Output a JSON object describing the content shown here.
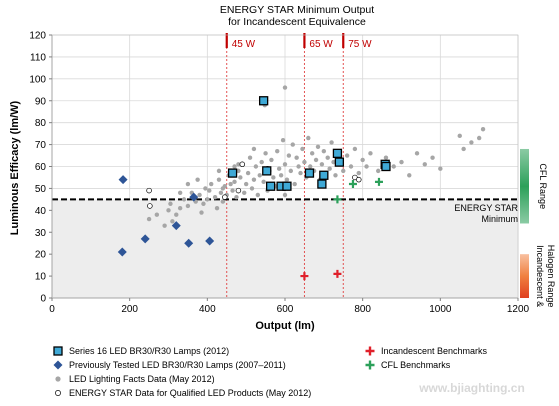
{
  "chart_data": {
    "type": "scatter",
    "title_lines": [
      "ENERGY STAR Minimum Output",
      "for Incandescent Equivalence"
    ],
    "xlabel": "Output (lm)",
    "ylabel": "Luminous Efficacy (lm/W)",
    "xlim": [
      0,
      1200
    ],
    "ylim": [
      0,
      120
    ],
    "x_ticks": [
      "0",
      "200",
      "400",
      "600",
      "800",
      "1000",
      "1200"
    ],
    "y_ticks": [
      "0",
      "10",
      "20",
      "30",
      "40",
      "50",
      "60",
      "70",
      "80",
      "90",
      "100",
      "110",
      "120"
    ],
    "grid": true,
    "energy_star_minimum": {
      "value": 45,
      "label_lines": [
        "ENERGY STAR",
        "Minimum"
      ]
    },
    "equivalence_lines": [
      {
        "label": "45 W",
        "x": 450
      },
      {
        "label": "65 W",
        "x": 650
      },
      {
        "label": "75 W",
        "x": 750
      }
    ],
    "right_bands": [
      {
        "label": "CFL Range",
        "from": 34,
        "to": 68,
        "color": "#2ca05a"
      },
      {
        "label_lines": [
          "Incandescent &",
          "Halogen Range"
        ],
        "from": 0,
        "to": 20,
        "color": "#f08040"
      }
    ],
    "series": [
      {
        "name": "Series 16 LED BR30/R30 Lamps (2012)",
        "marker": "square",
        "color": "#3fa9d6",
        "points": [
          [
            465,
            57
          ],
          [
            545,
            90
          ],
          [
            553,
            58
          ],
          [
            563,
            51
          ],
          [
            590,
            51
          ],
          [
            605,
            51
          ],
          [
            663,
            57
          ],
          [
            695,
            52
          ],
          [
            700,
            56
          ],
          [
            735,
            66
          ],
          [
            740,
            62
          ],
          [
            858,
            61
          ],
          [
            860,
            60
          ]
        ]
      },
      {
        "name": "Previously Tested  LED BR30/R30 Lamps (2007–2011)",
        "marker": "diamond",
        "color": "#2e5597",
        "points": [
          [
            183,
            54
          ],
          [
            181,
            21
          ],
          [
            240,
            27
          ],
          [
            320,
            33
          ],
          [
            352,
            25
          ],
          [
            365,
            46
          ],
          [
            406,
            26
          ]
        ]
      },
      {
        "name": "LED Lighting Facts Data (May 2012)",
        "marker": "circle",
        "color": "#a6a6a6",
        "points": [
          [
            250,
            36
          ],
          [
            270,
            38
          ],
          [
            290,
            33
          ],
          [
            300,
            40
          ],
          [
            305,
            43
          ],
          [
            310,
            35
          ],
          [
            320,
            38
          ],
          [
            330,
            41
          ],
          [
            340,
            45
          ],
          [
            350,
            42
          ],
          [
            360,
            48
          ],
          [
            370,
            44
          ],
          [
            380,
            47
          ],
          [
            390,
            43
          ],
          [
            395,
            50
          ],
          [
            400,
            45
          ],
          [
            405,
            49
          ],
          [
            410,
            52
          ],
          [
            420,
            46
          ],
          [
            425,
            41
          ],
          [
            430,
            54
          ],
          [
            435,
            48
          ],
          [
            440,
            44
          ],
          [
            445,
            51
          ],
          [
            450,
            47
          ],
          [
            455,
            56
          ],
          [
            460,
            52
          ],
          [
            465,
            49
          ],
          [
            470,
            53
          ],
          [
            475,
            46
          ],
          [
            480,
            58
          ],
          [
            485,
            55
          ],
          [
            490,
            61
          ],
          [
            495,
            48
          ],
          [
            500,
            52
          ],
          [
            505,
            57
          ],
          [
            510,
            64
          ],
          [
            515,
            50
          ],
          [
            520,
            54
          ],
          [
            525,
            60
          ],
          [
            530,
            47
          ],
          [
            535,
            56
          ],
          [
            540,
            62
          ],
          [
            545,
            53
          ],
          [
            550,
            66
          ],
          [
            555,
            49
          ],
          [
            560,
            58
          ],
          [
            565,
            63
          ],
          [
            570,
            55
          ],
          [
            575,
            51
          ],
          [
            580,
            67
          ],
          [
            585,
            59
          ],
          [
            590,
            56
          ],
          [
            595,
            72
          ],
          [
            600,
            61
          ],
          [
            605,
            54
          ],
          [
            610,
            65
          ],
          [
            615,
            58
          ],
          [
            620,
            70
          ],
          [
            625,
            52
          ],
          [
            630,
            64
          ],
          [
            635,
            60
          ],
          [
            640,
            57
          ],
          [
            645,
            68
          ],
          [
            650,
            62
          ],
          [
            655,
            55
          ],
          [
            660,
            73
          ],
          [
            665,
            60
          ],
          [
            670,
            66
          ],
          [
            675,
            58
          ],
          [
            680,
            63
          ],
          [
            685,
            69
          ],
          [
            690,
            54
          ],
          [
            695,
            61
          ],
          [
            700,
            67
          ],
          [
            705,
            57
          ],
          [
            710,
            64
          ],
          [
            715,
            59
          ],
          [
            720,
            71
          ],
          [
            725,
            62
          ],
          [
            730,
            56
          ],
          [
            745,
            61
          ],
          [
            750,
            58
          ],
          [
            760,
            65
          ],
          [
            770,
            60
          ],
          [
            780,
            68
          ],
          [
            790,
            57
          ],
          [
            800,
            63
          ],
          [
            810,
            60
          ],
          [
            820,
            66
          ],
          [
            840,
            58
          ],
          [
            860,
            64
          ],
          [
            880,
            60
          ],
          [
            900,
            62
          ],
          [
            920,
            56
          ],
          [
            940,
            66
          ],
          [
            960,
            61
          ],
          [
            980,
            64
          ],
          [
            1000,
            59
          ],
          [
            1050,
            74
          ],
          [
            1060,
            68
          ],
          [
            1080,
            71
          ],
          [
            1100,
            73
          ],
          [
            1110,
            77
          ],
          [
            548,
            88
          ],
          [
            600,
            96
          ],
          [
            430,
            58
          ],
          [
            375,
            54
          ],
          [
            385,
            39
          ],
          [
            470,
            60
          ],
          [
            520,
            68
          ],
          [
            480,
            61
          ],
          [
            600,
            47
          ],
          [
            440,
            50
          ],
          [
            350,
            52
          ],
          [
            330,
            48
          ]
        ]
      },
      {
        "name": "ENERGY STAR Data for Qualified LED Products (May 2012)",
        "marker": "open-circle",
        "color": "#ffffff",
        "points": [
          [
            250,
            49
          ],
          [
            252,
            42
          ],
          [
            445,
            46
          ],
          [
            480,
            49
          ],
          [
            490,
            61
          ],
          [
            555,
            59
          ],
          [
            780,
            55
          ],
          [
            790,
            54
          ]
        ]
      },
      {
        "name": "Incandescent Benchmarks",
        "marker": "plus",
        "color": "#e0202a",
        "points": [
          [
            650,
            10
          ],
          [
            735,
            11
          ]
        ]
      },
      {
        "name": "CFL Benchmarks",
        "marker": "plus",
        "color": "#2ca05a",
        "points": [
          [
            735,
            45
          ],
          [
            775,
            52
          ],
          [
            842,
            53
          ]
        ]
      }
    ]
  },
  "watermark": "www.bjiaghting.cn"
}
